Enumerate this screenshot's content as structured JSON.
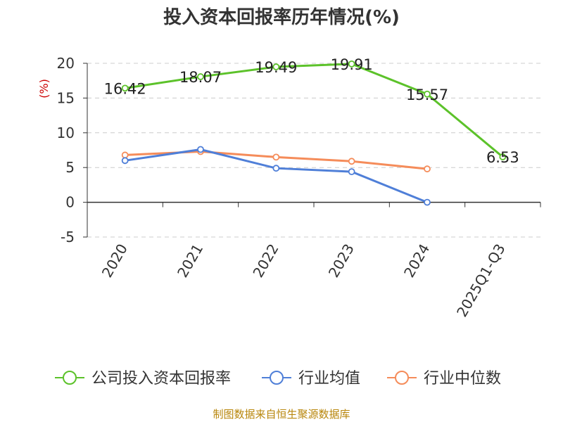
{
  "chart_data": {
    "type": "line",
    "title": "投入资本回报率历年情况(%)",
    "ylabel": "(%)",
    "xlabel": "",
    "categories": [
      "2020",
      "2021",
      "2022",
      "2023",
      "2024",
      "2025Q1-Q3"
    ],
    "ylim": [
      -5,
      20
    ],
    "yticks": [
      -5,
      0,
      5,
      10,
      15,
      20
    ],
    "grid": true,
    "legend_position": "bottom",
    "series": [
      {
        "name": "公司投入资本回报率",
        "color": "#5cc22a",
        "values": [
          16.42,
          18.07,
          19.49,
          19.91,
          15.57,
          6.53
        ],
        "labels": [
          "16.42",
          "18.07",
          "19.49",
          "19.91",
          "15.57",
          "6.53"
        ]
      },
      {
        "name": "行业均值",
        "color": "#4f7fd8",
        "values": [
          6.0,
          7.6,
          4.9,
          4.4,
          0.0,
          null
        ]
      },
      {
        "name": "行业中位数",
        "color": "#f58c5a",
        "values": [
          6.8,
          7.3,
          6.5,
          5.9,
          4.8,
          null
        ]
      }
    ]
  },
  "source": "制图数据来自恒生聚源数据库"
}
